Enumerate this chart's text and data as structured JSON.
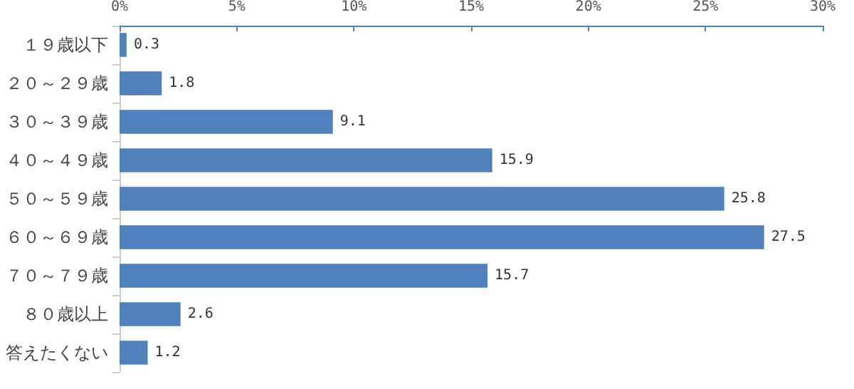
{
  "chart_data": {
    "type": "bar",
    "orientation": "horizontal",
    "categories": [
      "１９歳以下",
      "２０～２９歳",
      "３０～３９歳",
      "４０～４９歳",
      "５０～５９歳",
      "６０～６９歳",
      "７０～７９歳",
      "８０歳以上",
      "答えたくない"
    ],
    "values": [
      0.3,
      1.8,
      9.1,
      15.9,
      25.8,
      27.5,
      15.7,
      2.6,
      1.2
    ],
    "color": "#4f81bd",
    "xlim": [
      0,
      30
    ],
    "xticks": [
      {
        "value": 0,
        "label": "0%"
      },
      {
        "value": 5,
        "label": "5%"
      },
      {
        "value": 10,
        "label": "10%"
      },
      {
        "value": 15,
        "label": "15%"
      },
      {
        "value": 20,
        "label": "20%"
      },
      {
        "value": 25,
        "label": "25%"
      },
      {
        "value": 30,
        "label": "30%"
      }
    ],
    "data_labels": true
  }
}
